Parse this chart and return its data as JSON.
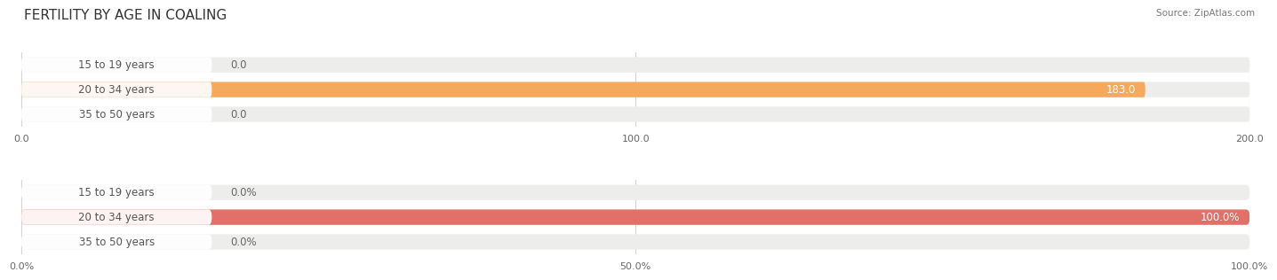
{
  "title": "FERTILITY BY AGE IN COALING",
  "source_text": "Source: ZipAtlas.com",
  "top_chart": {
    "categories": [
      "15 to 19 years",
      "20 to 34 years",
      "35 to 50 years"
    ],
    "values": [
      0.0,
      183.0,
      0.0
    ],
    "xlim_max": 200.0,
    "xticks": [
      0.0,
      100.0,
      200.0
    ],
    "xtick_labels": [
      "0.0",
      "100.0",
      "200.0"
    ],
    "bar_color": "#F5A95C",
    "bar_bg_color": "#EDEDEC",
    "bar_height": 0.62
  },
  "bottom_chart": {
    "categories": [
      "15 to 19 years",
      "20 to 34 years",
      "35 to 50 years"
    ],
    "values": [
      0.0,
      100.0,
      0.0
    ],
    "xlim_max": 100.0,
    "xticks": [
      0.0,
      50.0,
      100.0
    ],
    "xtick_labels": [
      "0.0%",
      "50.0%",
      "100.0%"
    ],
    "bar_color": "#E07068",
    "bar_bg_color": "#EDEDEC",
    "bar_height": 0.62
  },
  "bg_color": "#FFFFFF",
  "grid_color": "#C8C8C8",
  "title_fontsize": 11,
  "label_fontsize": 8.5,
  "tick_fontsize": 8,
  "source_fontsize": 7.5,
  "pill_bg": "#FFFFFF",
  "pill_label_color": "#555555",
  "value_color_inside": "#FFFFFF",
  "value_color_outside": "#666666"
}
